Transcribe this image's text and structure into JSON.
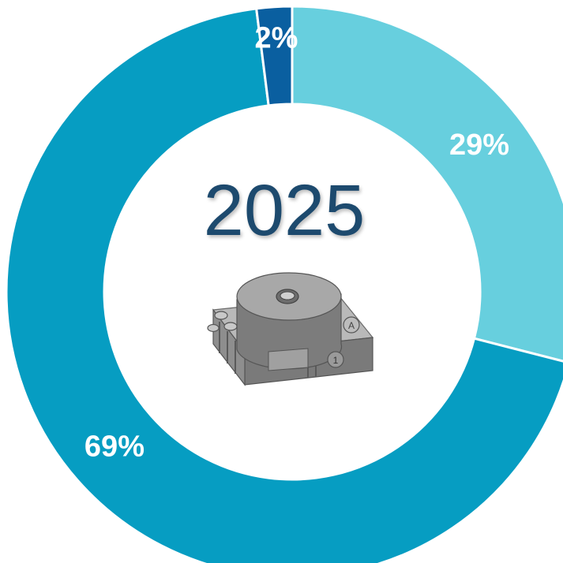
{
  "chart_data": {
    "type": "pie",
    "slices": [
      {
        "value": 29,
        "label": "29%",
        "color": "#67cfde"
      },
      {
        "value": 69,
        "label": "69%",
        "color": "#069dc2"
      },
      {
        "value": 2,
        "label": "2%",
        "color": "#0a5fa0"
      }
    ],
    "center_text": "2025",
    "center_image": "buzzer-component-illustration"
  }
}
